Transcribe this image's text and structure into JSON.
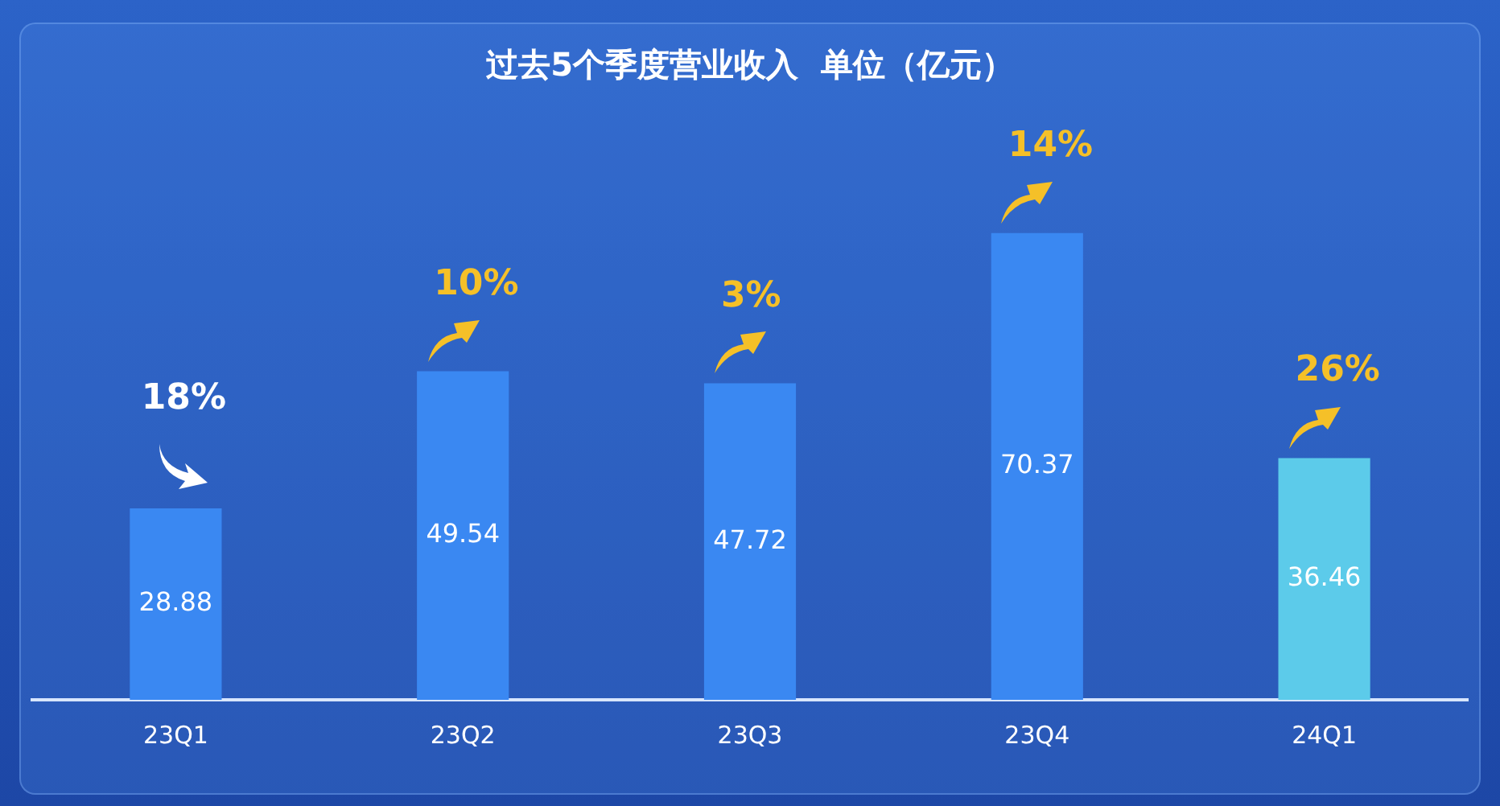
{
  "chart_data": {
    "type": "bar",
    "title": "过去5个季度营业收入  单位（亿元）",
    "categories": [
      "23Q1",
      "23Q2",
      "23Q3",
      "23Q4",
      "24Q1"
    ],
    "values": [
      28.88,
      49.54,
      47.72,
      70.37,
      36.46
    ],
    "colors": [
      "#3a88f2",
      "#3a88f2",
      "#3a88f2",
      "#3a88f2",
      "#5ccbea"
    ],
    "data_labels": true,
    "legend": false,
    "annotations": [
      {
        "text": "18%",
        "x": "23Q1",
        "y": 28.88
      },
      {
        "text": "10%",
        "x": "23Q2",
        "y": 49.54
      },
      {
        "text": "3%",
        "x": "23Q3",
        "y": 47.72
      },
      {
        "text": "14%",
        "x": "23Q4",
        "y": 70.37
      },
      {
        "text": "26%",
        "x": "24Q1",
        "y": 36.46
      }
    ]
  }
}
